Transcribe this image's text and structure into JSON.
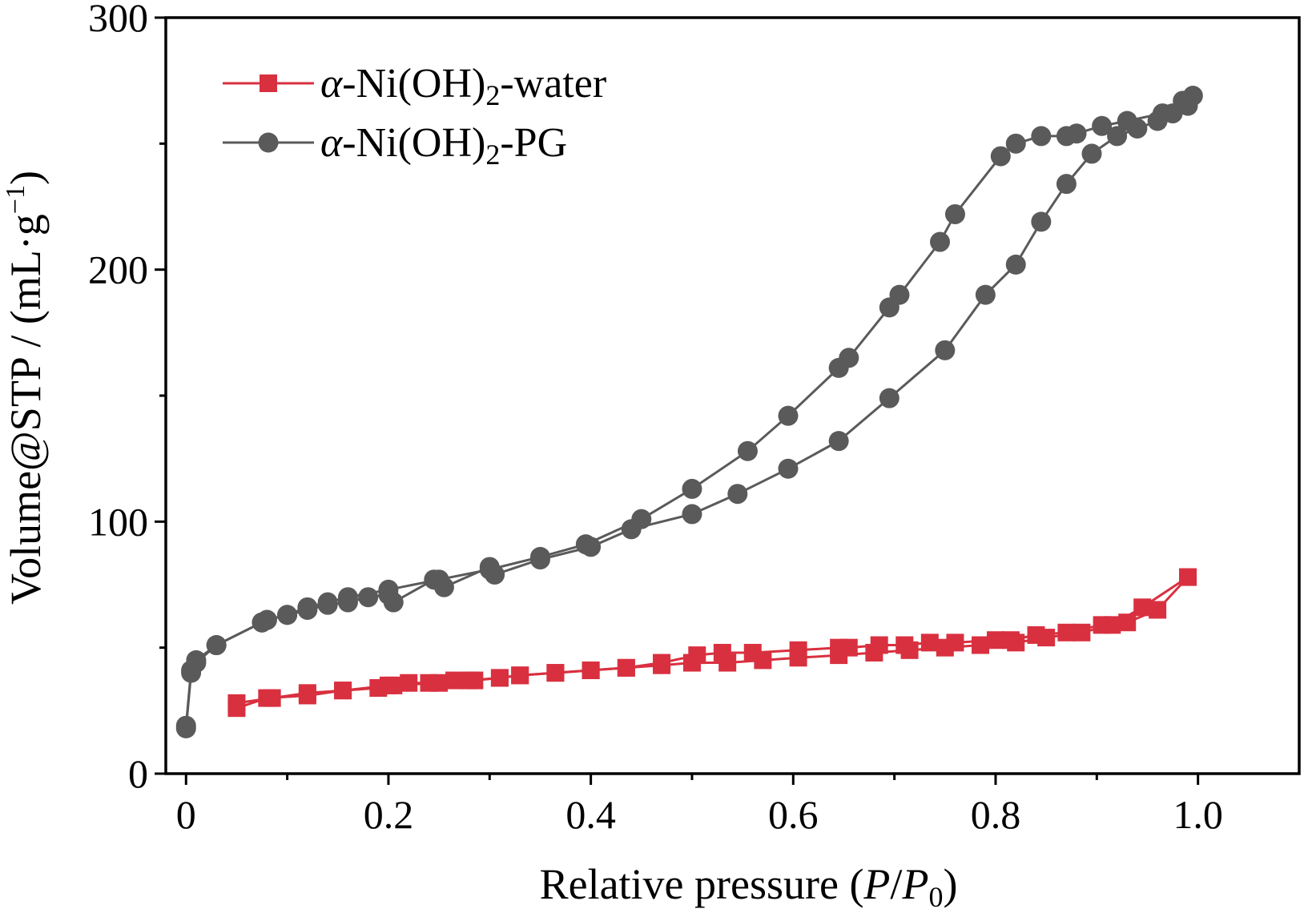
{
  "chart_data": {
    "type": "line",
    "xlabel": {
      "main": "Relative pressure (",
      "p": "P",
      "slash": "/",
      "p0": "P",
      "p0_sub": "0",
      "close": ")"
    },
    "ylabel": {
      "main": "Volume@STP / (mL·g",
      "sup": "−1",
      "close": ")"
    },
    "xlim": [
      -0.02,
      1.1
    ],
    "ylim": [
      0,
      300
    ],
    "xticks": [
      0,
      0.2,
      0.4,
      0.6,
      0.8,
      1.0
    ],
    "xtick_labels": [
      "0",
      "0.2",
      "0.4",
      "0.6",
      "0.8",
      "1.0"
    ],
    "yticks": [
      0,
      100,
      200,
      300
    ],
    "ytick_labels": [
      "0",
      "100",
      "200",
      "300"
    ],
    "legend_position": "top-left",
    "grid": false,
    "series": [
      {
        "name": {
          "greek": "α",
          "before_sub": "-Ni(OH)",
          "sub": "2",
          "after_sub": "-water"
        },
        "color": "#d93040",
        "marker": "square",
        "branches": [
          {
            "x": [
              0.05,
              0.08,
              0.12,
              0.155,
              0.19,
              0.205,
              0.22,
              0.24,
              0.265,
              0.285,
              0.31,
              0.33,
              0.365,
              0.4,
              0.435,
              0.47,
              0.505,
              0.53,
              0.56,
              0.605,
              0.645,
              0.655,
              0.685,
              0.71,
              0.735,
              0.76,
              0.8,
              0.815,
              0.84,
              0.87,
              0.905,
              0.93,
              0.96,
              0.99
            ],
            "y": [
              26,
              30,
              31,
              33,
              34,
              35,
              36,
              36,
              37,
              37,
              38,
              39,
              40,
              41,
              42,
              44,
              47,
              48,
              48,
              49,
              50,
              50,
              51,
              51,
              52,
              52,
              53,
              53,
              55,
              56,
              59,
              60,
              65,
              78
            ]
          },
          {
            "x": [
              0.99,
              0.945,
              0.915,
              0.885,
              0.85,
              0.82,
              0.785,
              0.75,
              0.715,
              0.68,
              0.645,
              0.605,
              0.57,
              0.535,
              0.5,
              0.47,
              0.435,
              0.4,
              0.365,
              0.33,
              0.31,
              0.28,
              0.25,
              0.2,
              0.155,
              0.12,
              0.085,
              0.05
            ],
            "y": [
              78,
              66,
              59,
              56,
              54,
              52,
              51,
              50,
              49,
              48,
              47,
              46,
              45,
              44,
              44,
              43,
              42,
              41,
              40,
              39,
              38,
              37,
              36,
              35,
              33,
              32,
              30,
              28
            ]
          }
        ]
      },
      {
        "name": {
          "greek": "α",
          "before_sub": "-Ni(OH)",
          "sub": "2",
          "after_sub": "-PG"
        },
        "color": "#5a5a5a",
        "marker": "circle",
        "branches": [
          {
            "x": [
              0.0,
              0.005,
              0.01,
              0.03,
              0.075,
              0.08,
              0.1,
              0.12,
              0.14,
              0.16,
              0.18,
              0.2,
              0.205,
              0.245,
              0.255,
              0.3,
              0.305,
              0.35,
              0.4,
              0.44,
              0.5,
              0.545,
              0.595,
              0.645,
              0.695,
              0.75,
              0.79,
              0.82,
              0.845,
              0.87,
              0.895,
              0.92,
              0.94,
              0.96,
              0.975,
              0.99
            ],
            "y": [
              19,
              41,
              45,
              51,
              60,
              61,
              63,
              65,
              67,
              68,
              70,
              71,
              68,
              77,
              74,
              82,
              79,
              85,
              90,
              97,
              103,
              111,
              121,
              132,
              149,
              168,
              190,
              202,
              219,
              234,
              246,
              253,
              256,
              259,
              262,
              265
            ]
          },
          {
            "x": [
              0.995,
              0.985,
              0.965,
              0.93,
              0.905,
              0.88,
              0.87,
              0.845,
              0.82,
              0.805,
              0.76,
              0.745,
              0.705,
              0.695,
              0.655,
              0.645,
              0.595,
              0.555,
              0.5,
              0.45,
              0.395,
              0.35,
              0.3,
              0.25,
              0.2,
              0.16,
              0.14,
              0.12,
              0.1,
              0.08,
              0.075,
              0.03,
              0.01,
              0.005,
              0.0
            ],
            "y": [
              269,
              267,
              262,
              259,
              257,
              254,
              253,
              253,
              250,
              245,
              222,
              211,
              190,
              185,
              165,
              161,
              142,
              128,
              113,
              101,
              91,
              86,
              81,
              77,
              73,
              70,
              68,
              66,
              63,
              61,
              60,
              51,
              44,
              40,
              18
            ]
          }
        ]
      }
    ]
  }
}
